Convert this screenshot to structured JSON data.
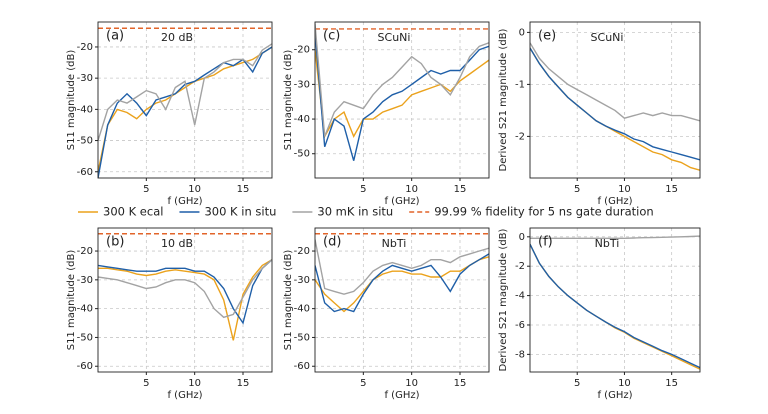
{
  "chart_data": [
    {
      "type": "line",
      "label": "(a)",
      "annotation": "20 dB",
      "xlabel": "f (GHz)",
      "ylabel": "S11 magnitude (dB)",
      "x": [
        0,
        1,
        2,
        3,
        4,
        5,
        6,
        7,
        8,
        9,
        10,
        11,
        12,
        13,
        14,
        15,
        16,
        17,
        18
      ],
      "xlim": [
        0,
        18
      ],
      "xticks": [
        5,
        10,
        15
      ],
      "ylim": [
        -62,
        -12
      ],
      "yticks": [
        -60,
        -50,
        -40,
        -30,
        -20
      ],
      "grid": true,
      "reference": {
        "name": "99.99 % fidelity for 5 ns gate duration",
        "value": -14,
        "color": "#e2642a"
      },
      "series": [
        {
          "name": "300 K ecal",
          "color": "#eba21c",
          "values": [
            -60,
            -45,
            -40,
            -41,
            -43,
            -40,
            -38,
            -37,
            -35,
            -33,
            -31,
            -30,
            -29,
            -27,
            -26,
            -25,
            -24,
            -22,
            -20
          ]
        },
        {
          "name": "300 K in situ",
          "color": "#1f5fa8",
          "values": [
            -62,
            -45,
            -38,
            -35,
            -38,
            -42,
            -37,
            -36,
            -35,
            -32,
            -31,
            -29,
            -27,
            -25,
            -26,
            -24,
            -28,
            -22,
            -20
          ]
        },
        {
          "name": "30 mK in situ",
          "color": "#a3a3a3",
          "values": [
            -50,
            -40,
            -37,
            -38,
            -36,
            -34,
            -35,
            -40,
            -33,
            -31,
            -45,
            -30,
            -28,
            -25,
            -24,
            -24,
            -26,
            -21,
            -19
          ]
        }
      ]
    },
    {
      "type": "line",
      "label": "(c)",
      "annotation": "SCuNi",
      "xlabel": "f (GHz)",
      "ylabel": "S11 magnitude (dB)",
      "x": [
        0,
        1,
        2,
        3,
        4,
        5,
        6,
        7,
        8,
        9,
        10,
        11,
        12,
        13,
        14,
        15,
        16,
        17,
        18
      ],
      "xlim": [
        0,
        18
      ],
      "xticks": [
        5,
        10,
        15
      ],
      "ylim": [
        -57,
        -12
      ],
      "yticks": [
        -50,
        -40,
        -30,
        -20
      ],
      "grid": true,
      "reference": {
        "name": "99.99 % fidelity for 5 ns gate duration",
        "value": -14,
        "color": "#e2642a"
      },
      "series": [
        {
          "name": "300 K ecal",
          "color": "#eba21c",
          "values": [
            -20,
            -45,
            -40,
            -38,
            -45,
            -40,
            -40,
            -38,
            -37,
            -36,
            -33,
            -32,
            -31,
            -30,
            -32,
            -29,
            -27,
            -25,
            -23
          ]
        },
        {
          "name": "300 K in situ",
          "color": "#1f5fa8",
          "values": [
            -15,
            -48,
            -40,
            -42,
            -52,
            -40,
            -38,
            -35,
            -33,
            -32,
            -30,
            -28,
            -26,
            -27,
            -26,
            -26,
            -23,
            -20,
            -19
          ]
        },
        {
          "name": "30 mK in situ",
          "color": "#a3a3a3",
          "values": [
            -12.5,
            -45,
            -38,
            -35,
            -36,
            -37,
            -33,
            -30,
            -28,
            -25,
            -22,
            -24,
            -28,
            -30,
            -33,
            -28,
            -22,
            -19,
            -18
          ]
        }
      ]
    },
    {
      "type": "line",
      "label": "(e)",
      "annotation": "SCuNi",
      "xlabel": "f (GHz)",
      "ylabel": "Derived S21 magnitude (dB)",
      "x": [
        0,
        1,
        2,
        3,
        4,
        5,
        6,
        7,
        8,
        9,
        10,
        11,
        12,
        13,
        14,
        15,
        16,
        17,
        18
      ],
      "xlim": [
        0,
        18
      ],
      "xticks": [
        5,
        10,
        15
      ],
      "ylim": [
        -2.8,
        0.2
      ],
      "yticks": [
        -2,
        -1,
        0
      ],
      "grid": true,
      "series": [
        {
          "name": "300 K ecal",
          "color": "#eba21c",
          "values": [
            -0.3,
            -0.6,
            -0.85,
            -1.05,
            -1.25,
            -1.4,
            -1.55,
            -1.7,
            -1.8,
            -1.9,
            -2.0,
            -2.1,
            -2.2,
            -2.3,
            -2.35,
            -2.45,
            -2.5,
            -2.6,
            -2.65
          ]
        },
        {
          "name": "300 K in situ",
          "color": "#1f5fa8",
          "values": [
            -0.3,
            -0.6,
            -0.85,
            -1.05,
            -1.25,
            -1.4,
            -1.55,
            -1.7,
            -1.8,
            -1.88,
            -1.95,
            -2.05,
            -2.1,
            -2.2,
            -2.25,
            -2.3,
            -2.35,
            -2.4,
            -2.45
          ]
        },
        {
          "name": "30 mK in situ",
          "color": "#a3a3a3",
          "values": [
            -0.2,
            -0.5,
            -0.7,
            -0.85,
            -1.0,
            -1.1,
            -1.2,
            -1.3,
            -1.4,
            -1.5,
            -1.65,
            -1.6,
            -1.55,
            -1.6,
            -1.55,
            -1.6,
            -1.6,
            -1.65,
            -1.7
          ]
        }
      ]
    },
    {
      "type": "line",
      "label": "(b)",
      "annotation": "10 dB",
      "xlabel": "f (GHz)",
      "ylabel": "S11 magnitude (dB)",
      "x": [
        0,
        1,
        2,
        3,
        4,
        5,
        6,
        7,
        8,
        9,
        10,
        11,
        12,
        13,
        14,
        15,
        16,
        17,
        18
      ],
      "xlim": [
        0,
        18
      ],
      "xticks": [
        5,
        10,
        15
      ],
      "ylim": [
        -62,
        -12
      ],
      "yticks": [
        -60,
        -50,
        -40,
        -30,
        -20
      ],
      "grid": true,
      "reference": {
        "name": "99.99 % fidelity for 5 ns gate duration",
        "value": -14,
        "color": "#e2642a"
      },
      "series": [
        {
          "name": "300 K ecal",
          "color": "#eba21c",
          "values": [
            -26,
            -26,
            -26.5,
            -27,
            -28,
            -28.5,
            -28,
            -27,
            -26.5,
            -27,
            -27.5,
            -28,
            -30,
            -37,
            -51,
            -35,
            -29,
            -25,
            -23
          ]
        },
        {
          "name": "300 K in situ",
          "color": "#1f5fa8",
          "values": [
            -25,
            -25.5,
            -26,
            -26.5,
            -27,
            -27,
            -27,
            -26,
            -26,
            -26,
            -27,
            -27,
            -29,
            -33,
            -40,
            -45,
            -32,
            -26,
            -23
          ]
        },
        {
          "name": "30 mK in situ",
          "color": "#a3a3a3",
          "values": [
            -29,
            -29.5,
            -30,
            -31,
            -32,
            -33,
            -32.5,
            -31,
            -30,
            -30,
            -31,
            -34,
            -40,
            -43,
            -42,
            -36,
            -30,
            -26,
            -23
          ]
        }
      ]
    },
    {
      "type": "line",
      "label": "(d)",
      "annotation": "NbTi",
      "xlabel": "f (GHz)",
      "ylabel": "S11 magnitude (dB)",
      "x": [
        0,
        1,
        2,
        3,
        4,
        5,
        6,
        7,
        8,
        9,
        10,
        11,
        12,
        13,
        14,
        15,
        16,
        17,
        18
      ],
      "xlim": [
        0,
        18
      ],
      "xticks": [
        5,
        10,
        15
      ],
      "ylim": [
        -62,
        -12
      ],
      "yticks": [
        -60,
        -50,
        -40,
        -30,
        -20
      ],
      "grid": true,
      "reference": {
        "name": "99.99 % fidelity for 5 ns gate duration",
        "value": -14,
        "color": "#e2642a"
      },
      "series": [
        {
          "name": "300 K ecal",
          "color": "#eba21c",
          "values": [
            -30,
            -35,
            -38,
            -41,
            -38,
            -34,
            -30,
            -28,
            -27,
            -27,
            -28,
            -28,
            -29,
            -29,
            -27,
            -27,
            -25,
            -23,
            -22
          ]
        },
        {
          "name": "300 K in situ",
          "color": "#1f5fa8",
          "values": [
            -25,
            -38,
            -41,
            -40,
            -41,
            -35,
            -30,
            -27,
            -25,
            -26,
            -27,
            -26,
            -25,
            -29,
            -34,
            -28,
            -25,
            -23,
            -21
          ]
        },
        {
          "name": "30 mK in situ",
          "color": "#a3a3a3",
          "values": [
            -16,
            -33,
            -34,
            -35,
            -34,
            -31,
            -27,
            -25,
            -24,
            -25,
            -26,
            -25,
            -23,
            -23,
            -24,
            -22,
            -21,
            -20,
            -19
          ]
        }
      ]
    },
    {
      "type": "line",
      "label": "(f)",
      "annotation": "NbTi",
      "xlabel": "f (GHz)",
      "ylabel": "Derived S21 magnitude (dB)",
      "x": [
        0,
        1,
        2,
        3,
        4,
        5,
        6,
        7,
        8,
        9,
        10,
        11,
        12,
        13,
        14,
        15,
        16,
        17,
        18
      ],
      "xlim": [
        0,
        18
      ],
      "xticks": [
        5,
        10,
        15
      ],
      "ylim": [
        -9.2,
        0.6
      ],
      "yticks": [
        -8,
        -6,
        -4,
        -2,
        0
      ],
      "grid": true,
      "series": [
        {
          "name": "300 K ecal",
          "color": "#eba21c",
          "values": [
            -0.5,
            -1.8,
            -2.7,
            -3.4,
            -4.0,
            -4.5,
            -5.0,
            -5.4,
            -5.8,
            -6.2,
            -6.5,
            -6.9,
            -7.2,
            -7.5,
            -7.8,
            -8.1,
            -8.4,
            -8.7,
            -9.0
          ]
        },
        {
          "name": "300 K in situ",
          "color": "#1f5fa8",
          "values": [
            -0.5,
            -1.8,
            -2.7,
            -3.4,
            -4.0,
            -4.5,
            -5.0,
            -5.4,
            -5.8,
            -6.15,
            -6.45,
            -6.85,
            -7.15,
            -7.45,
            -7.75,
            -8.0,
            -8.3,
            -8.6,
            -8.9
          ]
        },
        {
          "name": "30 mK in situ",
          "color": "#a3a3a3",
          "values": [
            -0.1,
            -0.1,
            -0.1,
            -0.1,
            -0.1,
            -0.1,
            -0.1,
            -0.1,
            -0.1,
            -0.1,
            -0.1,
            -0.08,
            -0.06,
            -0.05,
            -0.03,
            -0.02,
            0,
            0.02,
            0.05
          ]
        }
      ]
    }
  ]
}
